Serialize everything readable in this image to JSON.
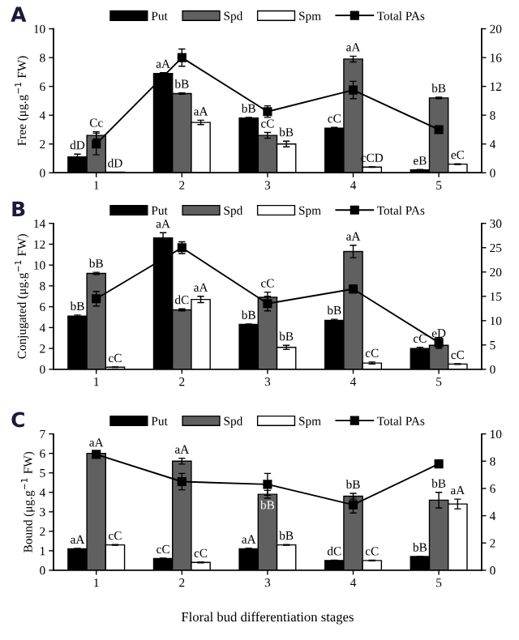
{
  "chart_data": [
    {
      "type": "bar",
      "title": "A",
      "ylabel": "Free (μg.g$^{−1}$ FW)",
      "categories": [
        "1",
        "2",
        "3",
        "4",
        "5"
      ],
      "ylim": [
        0,
        10
      ],
      "yticks": [
        0,
        2,
        4,
        6,
        8,
        10
      ],
      "y2lim": [
        0,
        20
      ],
      "y2ticks": [
        0,
        4,
        8,
        12,
        16,
        20
      ],
      "legend": "top",
      "grid": false,
      "series": [
        {
          "name": "Put",
          "color": "#000000",
          "values": [
            1.1,
            6.9,
            3.8,
            3.1,
            0.2
          ],
          "errors": [
            0.2,
            0.05,
            0.05,
            0.05,
            0.03
          ],
          "value_labels": [
            "dD",
            "aA",
            "bB",
            "cC",
            "eB"
          ]
        },
        {
          "name": "Spd",
          "color": "#606060",
          "values": [
            2.6,
            5.5,
            2.6,
            7.9,
            5.2
          ],
          "errors": [
            0.25,
            0.05,
            0.2,
            0.2,
            0.05
          ],
          "value_labels": [
            "Cc",
            "bB",
            "cC",
            "aA",
            "bB"
          ]
        },
        {
          "name": "Spm",
          "color": "#ffffff",
          "values": [
            0.05,
            3.5,
            2.0,
            0.4,
            0.6
          ],
          "errors": [
            null,
            0.15,
            0.2,
            0.02,
            0.03
          ],
          "value_labels": [
            "dD",
            "aA",
            "bB",
            "cCD",
            "eC"
          ]
        },
        {
          "name": "Total PAs",
          "type": "line",
          "axis": "y2",
          "marker": "square",
          "color": "#000000",
          "values": [
            4,
            16,
            8.5,
            11.5,
            6
          ],
          "errors": [
            1.5,
            1.2,
            0.8,
            1.2,
            0.4
          ]
        }
      ]
    },
    {
      "type": "bar",
      "title": "B",
      "ylabel": "Conjugated (μg.g$^{−1}$ FW)",
      "categories": [
        "1",
        "2",
        "3",
        "4",
        "5"
      ],
      "ylim": [
        0,
        14
      ],
      "yticks": [
        0,
        2,
        4,
        6,
        8,
        10,
        12,
        14
      ],
      "y2lim": [
        0,
        30
      ],
      "y2ticks": [
        0,
        5,
        10,
        15,
        20,
        25,
        30
      ],
      "legend": "top",
      "grid": false,
      "series": [
        {
          "name": "Put",
          "color": "#000000",
          "values": [
            5.1,
            12.6,
            4.3,
            4.7,
            2.0
          ],
          "errors": [
            0.1,
            0.5,
            0.05,
            0.1,
            0.1
          ],
          "value_labels": [
            "bB",
            "aA",
            "bB",
            "bB",
            "cC"
          ]
        },
        {
          "name": "Spd",
          "color": "#606060",
          "values": [
            9.2,
            5.7,
            6.9,
            11.3,
            2.3
          ],
          "errors": [
            0.1,
            0.1,
            0.5,
            0.6,
            0.3
          ],
          "value_labels": [
            "bB",
            "dC",
            "cC",
            "aA",
            "eD"
          ]
        },
        {
          "name": "Spm",
          "color": "#ffffff",
          "values": [
            0.2,
            6.7,
            2.1,
            0.6,
            0.5
          ],
          "errors": [
            0.02,
            0.3,
            0.2,
            0.1,
            0.03
          ],
          "value_labels": [
            "cC",
            "aA",
            "bB",
            "cC",
            "cC"
          ]
        },
        {
          "name": "Total PAs",
          "type": "line",
          "axis": "y2",
          "marker": "square",
          "color": "#000000",
          "values": [
            14.5,
            25,
            13.5,
            16.5,
            5.5
          ],
          "errors": [
            1.5,
            1.2,
            1.5,
            0.8,
            1.0
          ]
        }
      ]
    },
    {
      "type": "bar",
      "title": "C",
      "ylabel": "Bound (μg.g$^{−1}$ FW)",
      "xlabel": "Floral bud differentiation stages",
      "categories": [
        "1",
        "2",
        "3",
        "4",
        "5"
      ],
      "ylim": [
        0,
        7
      ],
      "yticks": [
        0,
        1,
        2,
        3,
        4,
        5,
        6,
        7
      ],
      "y2lim": [
        0,
        10
      ],
      "y2ticks": [
        0,
        2,
        4,
        6,
        8,
        10
      ],
      "legend": "top",
      "grid": false,
      "series": [
        {
          "name": "Put",
          "color": "#000000",
          "values": [
            1.1,
            0.6,
            1.1,
            0.5,
            0.7
          ],
          "errors": [
            0.02,
            0.02,
            0.03,
            0.02,
            0.02
          ],
          "value_labels": [
            "aA",
            "cC",
            "aA",
            "dC",
            "bB"
          ]
        },
        {
          "name": "Spd",
          "color": "#606060",
          "values": [
            6.0,
            5.6,
            3.9,
            3.8,
            3.6
          ],
          "errors": [
            0.1,
            0.15,
            0.2,
            0.15,
            0.4
          ],
          "value_labels": [
            "aA",
            "aA",
            "bB",
            "bB",
            "bB"
          ]
        },
        {
          "name": "Spm",
          "color": "#ffffff",
          "values": [
            1.3,
            0.4,
            1.3,
            0.5,
            3.4
          ],
          "errors": [
            0.02,
            0.02,
            0.02,
            0.02,
            0.25
          ],
          "value_labels": [
            "cC",
            "cC",
            "bB",
            "cC",
            "aA"
          ]
        },
        {
          "name": "Total PAs",
          "type": "line",
          "axis": "y2",
          "marker": "square",
          "color": "#000000",
          "values": [
            8.5,
            6.5,
            6.3,
            4.8,
            7.8
          ],
          "errors": [
            0.2,
            0.6,
            0.8,
            0.6,
            0.2
          ]
        }
      ]
    }
  ]
}
